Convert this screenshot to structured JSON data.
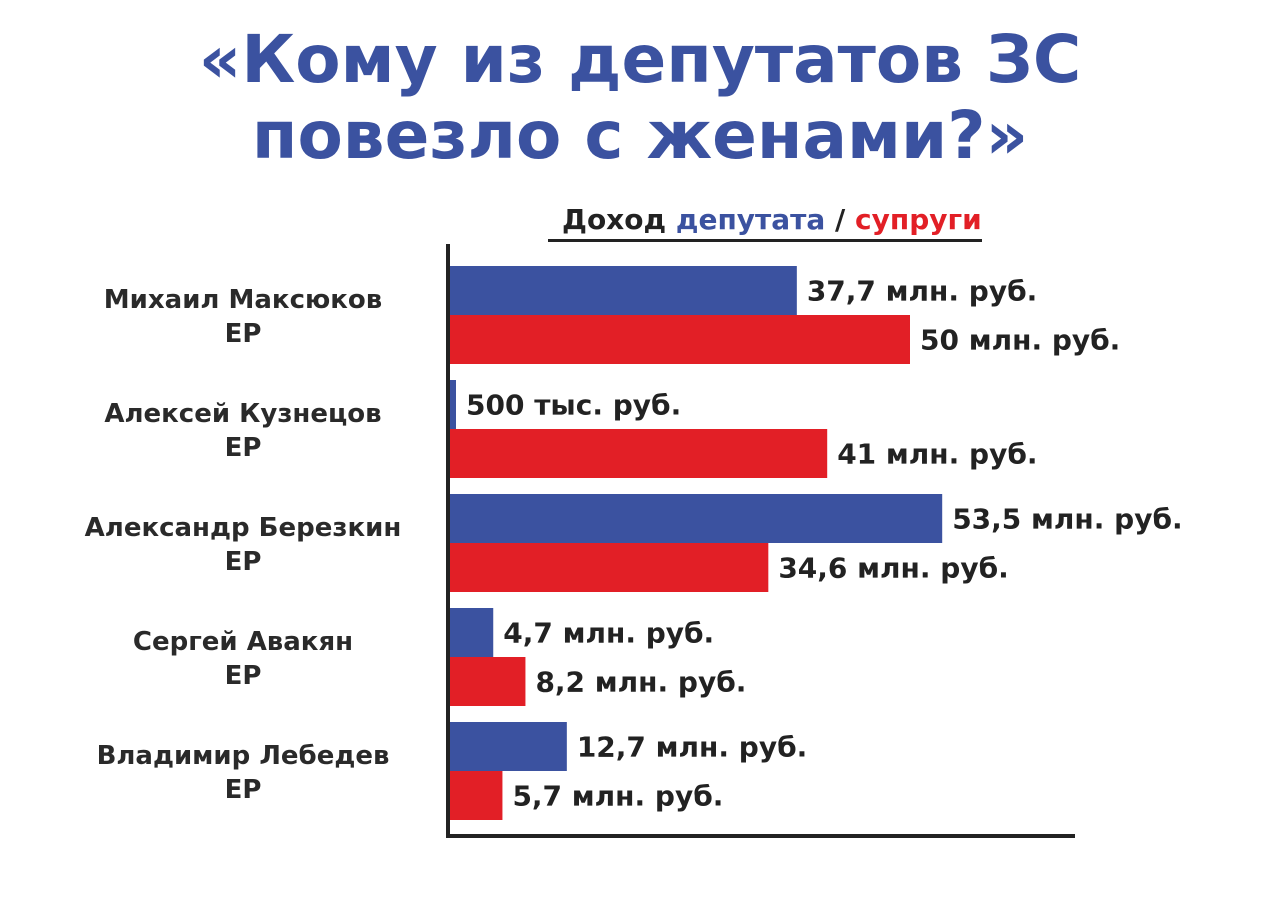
{
  "title": {
    "line1": "«Кому из депутатов ЗС",
    "line2": "повезло с женами?»"
  },
  "legend": {
    "prefix": "Доход ",
    "series1": "депутата",
    "separator": " / ",
    "series2": "супруги"
  },
  "colors": {
    "series1": "#3b52a0",
    "series2": "#e21f26",
    "axis": "#222222",
    "title": "#3b52a0"
  },
  "chart_data": {
    "type": "bar",
    "orientation": "horizontal",
    "title": "«Кому из депутатов ЗС повезло с женами?»",
    "categories": [
      {
        "name": "Михаил Максюков",
        "party": "ЕР"
      },
      {
        "name": "Алексей Кузнецов",
        "party": "ЕР"
      },
      {
        "name": "Александр Березкин",
        "party": "ЕР"
      },
      {
        "name": "Сергей Авакян",
        "party": "ЕР"
      },
      {
        "name": "Владимир Лебедев",
        "party": "ЕР"
      }
    ],
    "series": [
      {
        "name": "депутата",
        "values": [
          37.7,
          0.5,
          53.5,
          4.7,
          12.7
        ],
        "labels": [
          "37,7 млн. руб.",
          "500 тыс. руб.",
          "53,5 млн. руб.",
          "4,7 млн. руб.",
          "12,7 млн. руб."
        ]
      },
      {
        "name": "супруги",
        "values": [
          50,
          41,
          34.6,
          8.2,
          5.7
        ],
        "labels": [
          "50 млн. руб.",
          "41 млн. руб.",
          "34,6 млн. руб.",
          "8,2 млн. руб.",
          "5,7 млн. руб."
        ]
      }
    ],
    "unit": "млн. руб.",
    "xlim": [
      0,
      67
    ],
    "grid": false,
    "legend_position": "top"
  }
}
